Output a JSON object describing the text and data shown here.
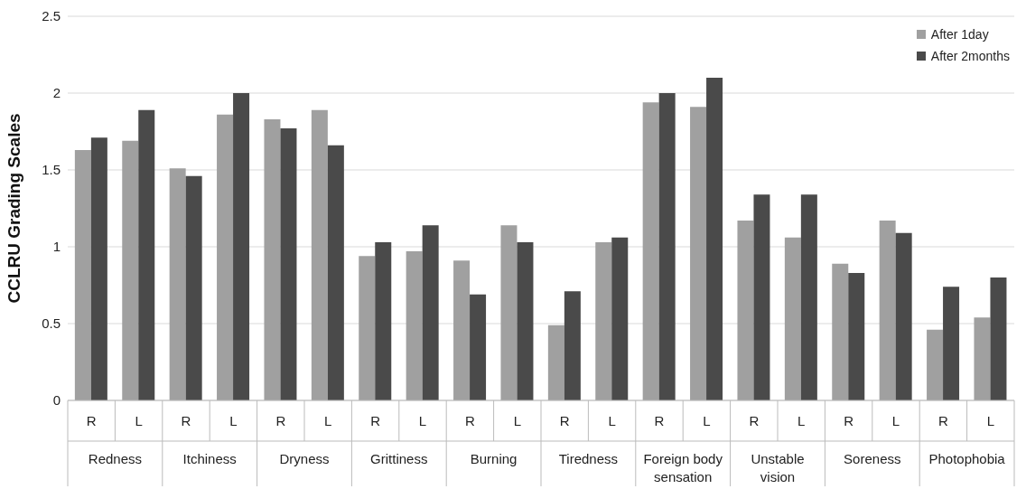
{
  "chart_data": {
    "type": "bar",
    "ylabel": "CCLRU Grading Scales",
    "categories": [
      "R",
      "L",
      "R",
      "L",
      "R",
      "L",
      "R",
      "L",
      "R",
      "L",
      "R",
      "L",
      "R",
      "L",
      "R",
      "L",
      "R",
      "L",
      "R",
      "L"
    ],
    "annotations": [
      "Redness",
      "Itchiness",
      "Dryness",
      "Grittiness",
      "Burning",
      "Tiredness",
      "Foreign body sensation",
      "Unstable vision",
      "Soreness",
      "Photophobia"
    ],
    "series": [
      {
        "name": "After 1day",
        "color": "#a0a0a0",
        "values": [
          1.63,
          1.69,
          1.51,
          1.86,
          1.83,
          1.89,
          0.94,
          0.97,
          0.91,
          1.14,
          0.49,
          1.03,
          1.94,
          1.91,
          1.17,
          1.06,
          0.89,
          1.17,
          0.46,
          0.54
        ]
      },
      {
        "name": "After 2months",
        "color": "#4a4a4a",
        "values": [
          1.71,
          1.89,
          1.46,
          2.0,
          1.77,
          1.66,
          1.03,
          1.14,
          0.69,
          1.03,
          0.71,
          1.06,
          2.0,
          2.1,
          1.34,
          1.34,
          0.83,
          1.09,
          0.74,
          0.8
        ]
      }
    ],
    "ylim": [
      0,
      2.5
    ],
    "yticks": [
      0,
      0.5,
      1,
      1.5,
      2,
      2.5
    ],
    "grid": "y",
    "legend": "top right"
  }
}
